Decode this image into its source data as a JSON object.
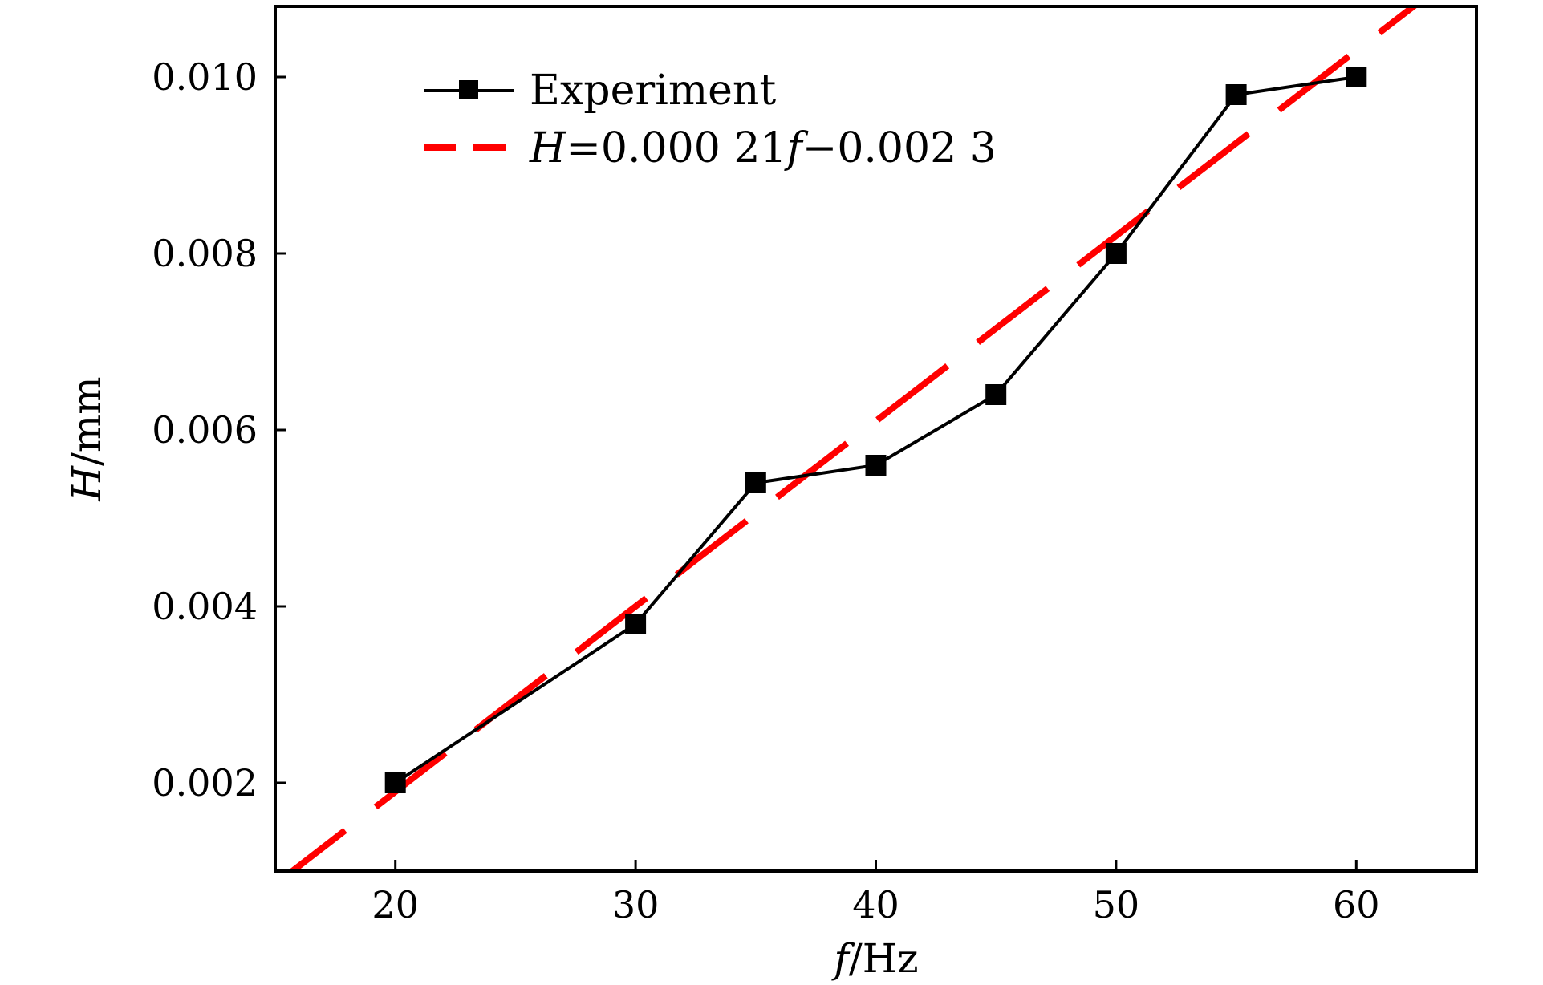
{
  "chart_data": {
    "type": "line",
    "title": "",
    "xlabel": {
      "var": "f",
      "unit": "/Hz"
    },
    "ylabel": {
      "var": "H",
      "unit": "/mm"
    },
    "xlim": [
      15,
      65
    ],
    "ylim": [
      0.001,
      0.0108
    ],
    "xticks": [
      20,
      30,
      40,
      50,
      60
    ],
    "xtick_labels": [
      "20",
      "30",
      "40",
      "50",
      "60"
    ],
    "yticks": [
      0.002,
      0.004,
      0.006,
      0.008,
      0.01
    ],
    "ytick_labels": [
      "0.002",
      "0.004",
      "0.006",
      "0.008",
      "0.010"
    ],
    "grid": false,
    "legend_position": "top-left",
    "series": [
      {
        "name": "Experiment",
        "style": "solid-line-square-markers",
        "color": "#000000",
        "x": [
          20,
          30,
          35,
          40,
          45,
          50,
          55,
          60
        ],
        "y": [
          0.002,
          0.0038,
          0.0054,
          0.0056,
          0.0064,
          0.008,
          0.0098,
          0.01
        ]
      },
      {
        "name_parts": [
          {
            "text": "H",
            "italic": true
          },
          {
            "text": "=0.000 21",
            "italic": false
          },
          {
            "text": "f",
            "italic": true
          },
          {
            "text": "−0.002 3",
            "italic": false
          }
        ],
        "style": "dashed-line",
        "color": "#ff0000",
        "fit": {
          "slope": 0.00021,
          "intercept": -0.0023
        },
        "x": [
          15,
          65
        ]
      }
    ]
  }
}
